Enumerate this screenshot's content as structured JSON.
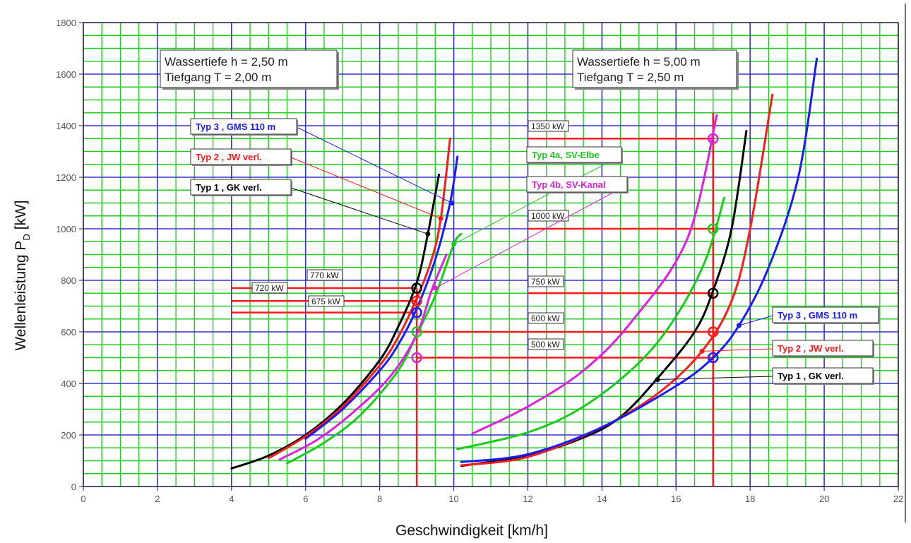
{
  "chart_data": {
    "type": "line",
    "xlabel": "Geschwindigkeit  [km/h]",
    "ylabel_main": "Wellenleistung",
    "ylabel_symbol": "P",
    "ylabel_sub": "D",
    "ylabel_unit": "[kW]",
    "xlim": [
      0,
      22
    ],
    "ylim": [
      0,
      1800
    ],
    "xticks": [
      0,
      2,
      4,
      6,
      8,
      10,
      12,
      14,
      16,
      18,
      20,
      22
    ],
    "yticks": [
      0,
      200,
      400,
      600,
      800,
      1000,
      1200,
      1400,
      1600,
      1800
    ],
    "grid": true,
    "colors": {
      "grid_green": "#22cc22",
      "grid_blue": "#3333cc",
      "black": "#000000",
      "red": "#ff1a1a",
      "blue": "#1a1aff",
      "green": "#1acc1a",
      "magenta": "#dd22dd"
    },
    "condition_boxes": [
      {
        "line1": "Wassertiefe h = 2,50 m",
        "line2": "Tiefgang      T = 2,00 m"
      },
      {
        "line1": "Wassertiefe h = 5,00 m",
        "line2": "Tiefgang      T = 2,50 m"
      }
    ],
    "series": [
      {
        "name": "Typ 1 , GK verl.",
        "color": "black",
        "group": "h=2,50",
        "points": [
          [
            4.0,
            70
          ],
          [
            5.0,
            120
          ],
          [
            6.0,
            200
          ],
          [
            7.0,
            320
          ],
          [
            8.0,
            490
          ],
          [
            8.5,
            620
          ],
          [
            9.0,
            790
          ],
          [
            9.3,
            980
          ],
          [
            9.6,
            1210
          ]
        ]
      },
      {
        "name": "Typ 2 , JW verl.",
        "color": "red",
        "group": "h=2,50",
        "points": [
          [
            5.0,
            110
          ],
          [
            6.0,
            195
          ],
          [
            7.0,
            310
          ],
          [
            8.0,
            470
          ],
          [
            8.5,
            580
          ],
          [
            9.0,
            730
          ],
          [
            9.4,
            880
          ],
          [
            9.65,
            1040
          ],
          [
            9.9,
            1350
          ]
        ]
      },
      {
        "name": "Typ 3 , GMS 110 m",
        "color": "blue",
        "group": "h=2,50",
        "points": [
          [
            6.0,
            185
          ],
          [
            7.0,
            300
          ],
          [
            8.0,
            450
          ],
          [
            8.5,
            550
          ],
          [
            9.0,
            690
          ],
          [
            9.5,
            880
          ],
          [
            9.9,
            1100
          ],
          [
            10.1,
            1280
          ]
        ]
      },
      {
        "name": "Typ 4a, SV-Elbe",
        "color": "green",
        "group": "h=2,50",
        "points": [
          [
            5.5,
            90
          ],
          [
            6.5,
            170
          ],
          [
            7.5,
            280
          ],
          [
            8.5,
            450
          ],
          [
            9.0,
            590
          ],
          [
            9.5,
            740
          ],
          [
            10.0,
            940
          ],
          [
            10.2,
            980
          ]
        ]
      },
      {
        "name": "Typ 4b, SV-Kanal",
        "color": "magenta",
        "group": "h=2,50",
        "points": [
          [
            5.3,
            105
          ],
          [
            6.3,
            180
          ],
          [
            7.3,
            290
          ],
          [
            8.3,
            430
          ],
          [
            9.0,
            590
          ],
          [
            9.4,
            760
          ],
          [
            9.8,
            900
          ]
        ]
      },
      {
        "name": "Typ 1 , GK verl.",
        "color": "black",
        "group": "h=5,00",
        "points": [
          [
            10.2,
            80
          ],
          [
            12.0,
            120
          ],
          [
            13.5,
            190
          ],
          [
            14.5,
            270
          ],
          [
            15.5,
            420
          ],
          [
            16.5,
            600
          ],
          [
            17.0,
            760
          ],
          [
            17.5,
            1000
          ],
          [
            17.9,
            1380
          ]
        ]
      },
      {
        "name": "Typ 2 , JW verl.",
        "color": "red",
        "group": "h=5,00",
        "points": [
          [
            10.2,
            82
          ],
          [
            12.0,
            115
          ],
          [
            14.0,
            230
          ],
          [
            15.5,
            360
          ],
          [
            16.7,
            525
          ],
          [
            17.5,
            720
          ],
          [
            18.0,
            1000
          ],
          [
            18.6,
            1520
          ]
        ]
      },
      {
        "name": "Typ 3 , GMS 110 m",
        "color": "blue",
        "group": "h=5,00",
        "points": [
          [
            10.2,
            95
          ],
          [
            12.0,
            125
          ],
          [
            14.0,
            230
          ],
          [
            16.0,
            390
          ],
          [
            17.0,
            500
          ],
          [
            17.7,
            625
          ],
          [
            18.5,
            850
          ],
          [
            19.3,
            1200
          ],
          [
            19.8,
            1660
          ]
        ]
      },
      {
        "name": "Typ 4a, SV-Elbe",
        "color": "green",
        "group": "h=5,00",
        "points": [
          [
            10.1,
            145
          ],
          [
            12.0,
            210
          ],
          [
            13.5,
            310
          ],
          [
            15.0,
            480
          ],
          [
            16.0,
            660
          ],
          [
            16.8,
            880
          ],
          [
            17.3,
            1120
          ]
        ]
      },
      {
        "name": "Typ 4b, SV-Kanal",
        "color": "magenta",
        "group": "h=5,00",
        "points": [
          [
            10.5,
            205
          ],
          [
            12.0,
            310
          ],
          [
            13.5,
            450
          ],
          [
            14.8,
            640
          ],
          [
            16.3,
            960
          ],
          [
            17.1,
            1440
          ]
        ]
      }
    ],
    "guide_lines": [
      {
        "label": "770 kW",
        "y": 770,
        "x0": 4,
        "x1": 9.0
      },
      {
        "label": "720 kW",
        "y": 720,
        "x0": 4,
        "x1": 9.0
      },
      {
        "label": "675 kW",
        "y": 675,
        "x0": 4,
        "x1": 9.0
      },
      {
        "label": "1350 kW",
        "y": 1350,
        "x0": 12,
        "x1": 17.0
      },
      {
        "label": "1000 kW",
        "y": 1000,
        "x0": 12,
        "x1": 17.0
      },
      {
        "label": "750 kW",
        "y": 750,
        "x0": 12,
        "x1": 17.0
      },
      {
        "label": "600 kW",
        "y": 600,
        "x0": 9.0,
        "x1": 17.0
      },
      {
        "label": "500 kW",
        "y": 500,
        "x0": 9.0,
        "x1": 17.0
      }
    ],
    "vertical_lines": [
      9.0,
      17.0
    ],
    "operating_points": [
      {
        "x": 9.0,
        "y": 770,
        "color": "black"
      },
      {
        "x": 9.0,
        "y": 720,
        "color": "red"
      },
      {
        "x": 9.0,
        "y": 675,
        "color": "blue"
      },
      {
        "x": 9.0,
        "y": 600,
        "color": "green"
      },
      {
        "x": 9.0,
        "y": 500,
        "color": "magenta"
      },
      {
        "x": 17.0,
        "y": 1350,
        "color": "magenta"
      },
      {
        "x": 17.0,
        "y": 1000,
        "color": "green"
      },
      {
        "x": 17.0,
        "y": 750,
        "color": "black"
      },
      {
        "x": 17.0,
        "y": 600,
        "color": "red"
      },
      {
        "x": 17.0,
        "y": 500,
        "color": "blue"
      }
    ],
    "series_labels": [
      {
        "text": "Typ 3 , GMS 110 m",
        "color": "blue",
        "target": [
          9.95,
          1100
        ]
      },
      {
        "text": "Typ 2 , JW verl.",
        "color": "red",
        "target": [
          9.65,
          1040
        ]
      },
      {
        "text": "Typ 1 , GK verl.",
        "color": "black",
        "target": [
          9.3,
          980
        ]
      },
      {
        "text": "Typ 4a, SV-Elbe",
        "color": "green",
        "target": [
          10.0,
          940
        ]
      },
      {
        "text": "Typ 4b, SV-Kanal",
        "color": "magenta",
        "target": [
          9.5,
          770
        ]
      },
      {
        "text": "Typ 3 , GMS 110 m",
        "color": "blue",
        "target": [
          17.7,
          625
        ]
      },
      {
        "text": "Typ 2 , JW verl.",
        "color": "red",
        "target": [
          16.7,
          525
        ]
      },
      {
        "text": "Typ 1 , GK verl.",
        "color": "black",
        "target": [
          15.5,
          415
        ]
      }
    ]
  }
}
